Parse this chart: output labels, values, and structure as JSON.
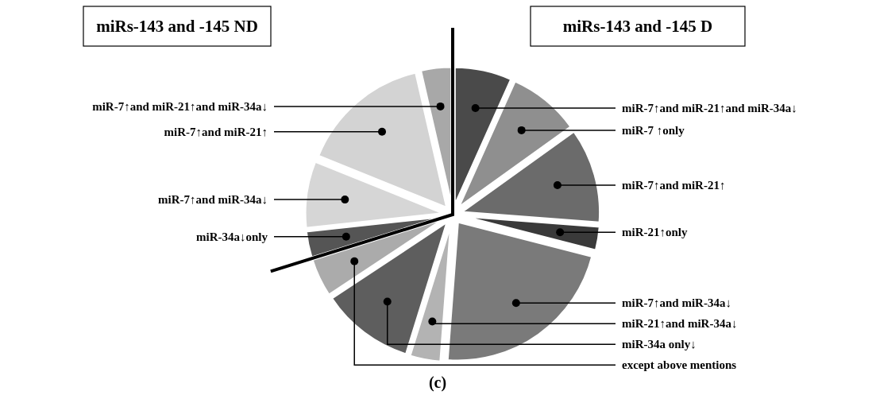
{
  "chart_data": {
    "type": "pie",
    "categories": [
      "miR-7↑and miR-21↑and miR-34a↓",
      "miR-7 ↑only",
      "miR-7↑and miR-21↑",
      "miR-21↑only",
      "miR-7↑and miR-34a↓",
      "miR-21↑and miR-34a↓",
      "miR-34a only↓",
      "except above mentions",
      "miR-34a↓only",
      "miR-7↑and miR-34a↓",
      "miR-7↑and miR-21↑",
      "miR-7↑and miR-21↑and miR-34a↓"
    ],
    "values": [
      6.7,
      8.4,
      11.1,
      2.8,
      22.2,
      3.6,
      10.9,
      4.5,
      3.1,
      7.8,
      15.3,
      3.6
    ],
    "colors": [
      "#4a4a4a",
      "#8f8f8f",
      "#6b6b6b",
      "#3a3a3a",
      "#7a7a7a",
      "#b3b3b3",
      "#5e5e5e",
      "#ababab",
      "#555555",
      "#d6d6d6",
      "#d3d3d3",
      "#a8a8a8"
    ],
    "annotations": [
      "miRs-143 and -145 ND",
      "miRs-143 and -145 D",
      "(c)"
    ]
  }
}
